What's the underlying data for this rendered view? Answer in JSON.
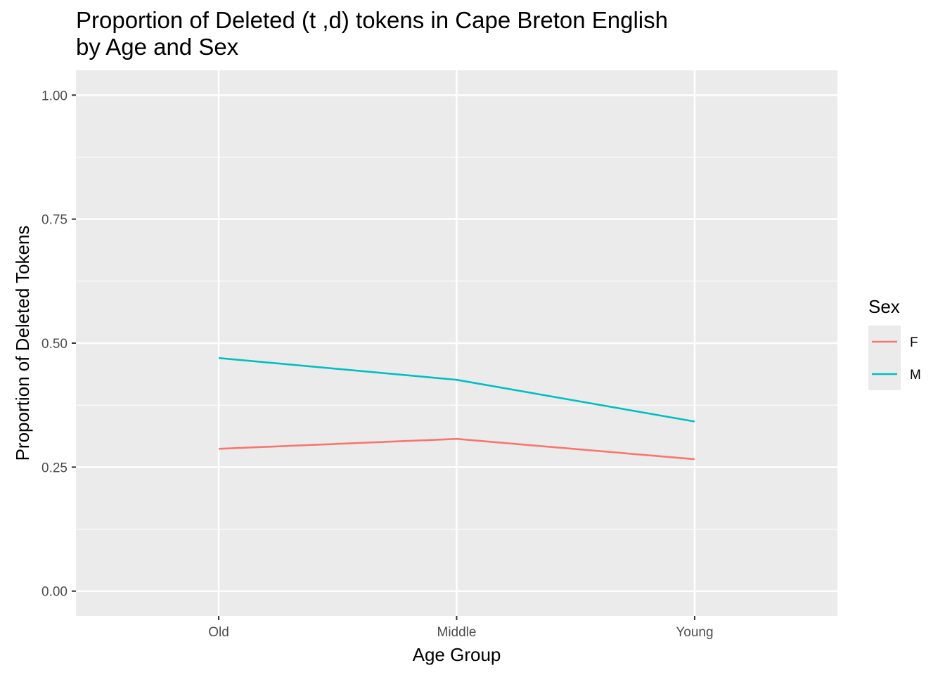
{
  "chart_data": {
    "type": "line",
    "title_lines": [
      "Proportion of Deleted (t ,d) tokens in Cape Breton English",
      "by Age and Sex"
    ],
    "xlabel": "Age Group",
    "ylabel": "Proportion of Deleted Tokens",
    "categories": [
      "Old",
      "Middle",
      "Young"
    ],
    "ylim": [
      -0.05,
      1.05
    ],
    "yticks": [
      0.0,
      0.25,
      0.5,
      0.75,
      1.0
    ],
    "ytick_labels": [
      "0.00",
      "0.25",
      "0.50",
      "0.75",
      "1.00"
    ],
    "grid": true,
    "legend": {
      "title": "Sex",
      "position": "right"
    },
    "series": [
      {
        "name": "F",
        "color": "#F8766D",
        "values": [
          0.287,
          0.307,
          0.266
        ]
      },
      {
        "name": "M",
        "color": "#00BFC4",
        "values": [
          0.47,
          0.426,
          0.342
        ]
      }
    ]
  }
}
